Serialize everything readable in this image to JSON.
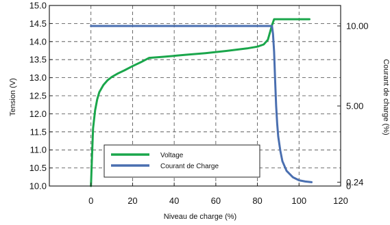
{
  "chart_data": {
    "type": "line",
    "title": "",
    "xlabel": "Niveau de charge (%)",
    "ylabel": "Tension (V)",
    "y2label": "Courant de charge (%)",
    "xlim": [
      -20,
      120
    ],
    "ylim": [
      10.0,
      15.0
    ],
    "y2lim": [
      0,
      11.28
    ],
    "x_ticks": [
      0,
      20,
      40,
      60,
      80,
      100,
      120
    ],
    "y_ticks": [
      10.0,
      10.5,
      11.0,
      11.5,
      12.0,
      12.5,
      13.0,
      13.5,
      14.0,
      14.5,
      15.0
    ],
    "y_tick_labels": [
      "10.0",
      "10.5",
      "11.0",
      "11.5",
      "12.0",
      "12.5",
      "13.0",
      "13.5",
      "14.0",
      "14.5",
      "15.0"
    ],
    "y2_ticks": [
      0,
      0.24,
      5.0,
      10.0
    ],
    "y2_tick_labels": [
      "0",
      "0.24",
      "5.00",
      "10.00"
    ],
    "grid": true,
    "legend_position": "lower-left",
    "series": [
      {
        "name": "Voltage",
        "axis": "left",
        "color": "#1aa64b",
        "x": [
          0,
          0.5,
          1,
          2,
          3,
          4,
          6,
          8,
          10,
          13,
          16,
          20,
          24,
          28,
          35,
          45,
          55,
          65,
          75,
          80,
          83,
          85,
          86,
          87,
          88,
          95,
          100,
          105
        ],
        "y": [
          10.0,
          10.8,
          11.6,
          12.1,
          12.4,
          12.6,
          12.8,
          12.93,
          13.02,
          13.12,
          13.2,
          13.32,
          13.43,
          13.55,
          13.58,
          13.63,
          13.68,
          13.74,
          13.81,
          13.86,
          13.92,
          14.05,
          14.25,
          14.45,
          14.62,
          14.62,
          14.62,
          14.62
        ]
      },
      {
        "name": "Courant de Charge",
        "axis": "right",
        "color": "#4a6fb0",
        "x": [
          0,
          10,
          30,
          50,
          70,
          87,
          87.5,
          88,
          88.5,
          89,
          89.5,
          90,
          91,
          92,
          94,
          97,
          100,
          103,
          106
        ],
        "y": [
          10.0,
          10.0,
          10.0,
          10.0,
          10.0,
          10.0,
          9.5,
          8.4,
          6.6,
          5.0,
          3.9,
          3.1,
          2.2,
          1.55,
          0.95,
          0.55,
          0.36,
          0.28,
          0.24
        ]
      }
    ]
  }
}
